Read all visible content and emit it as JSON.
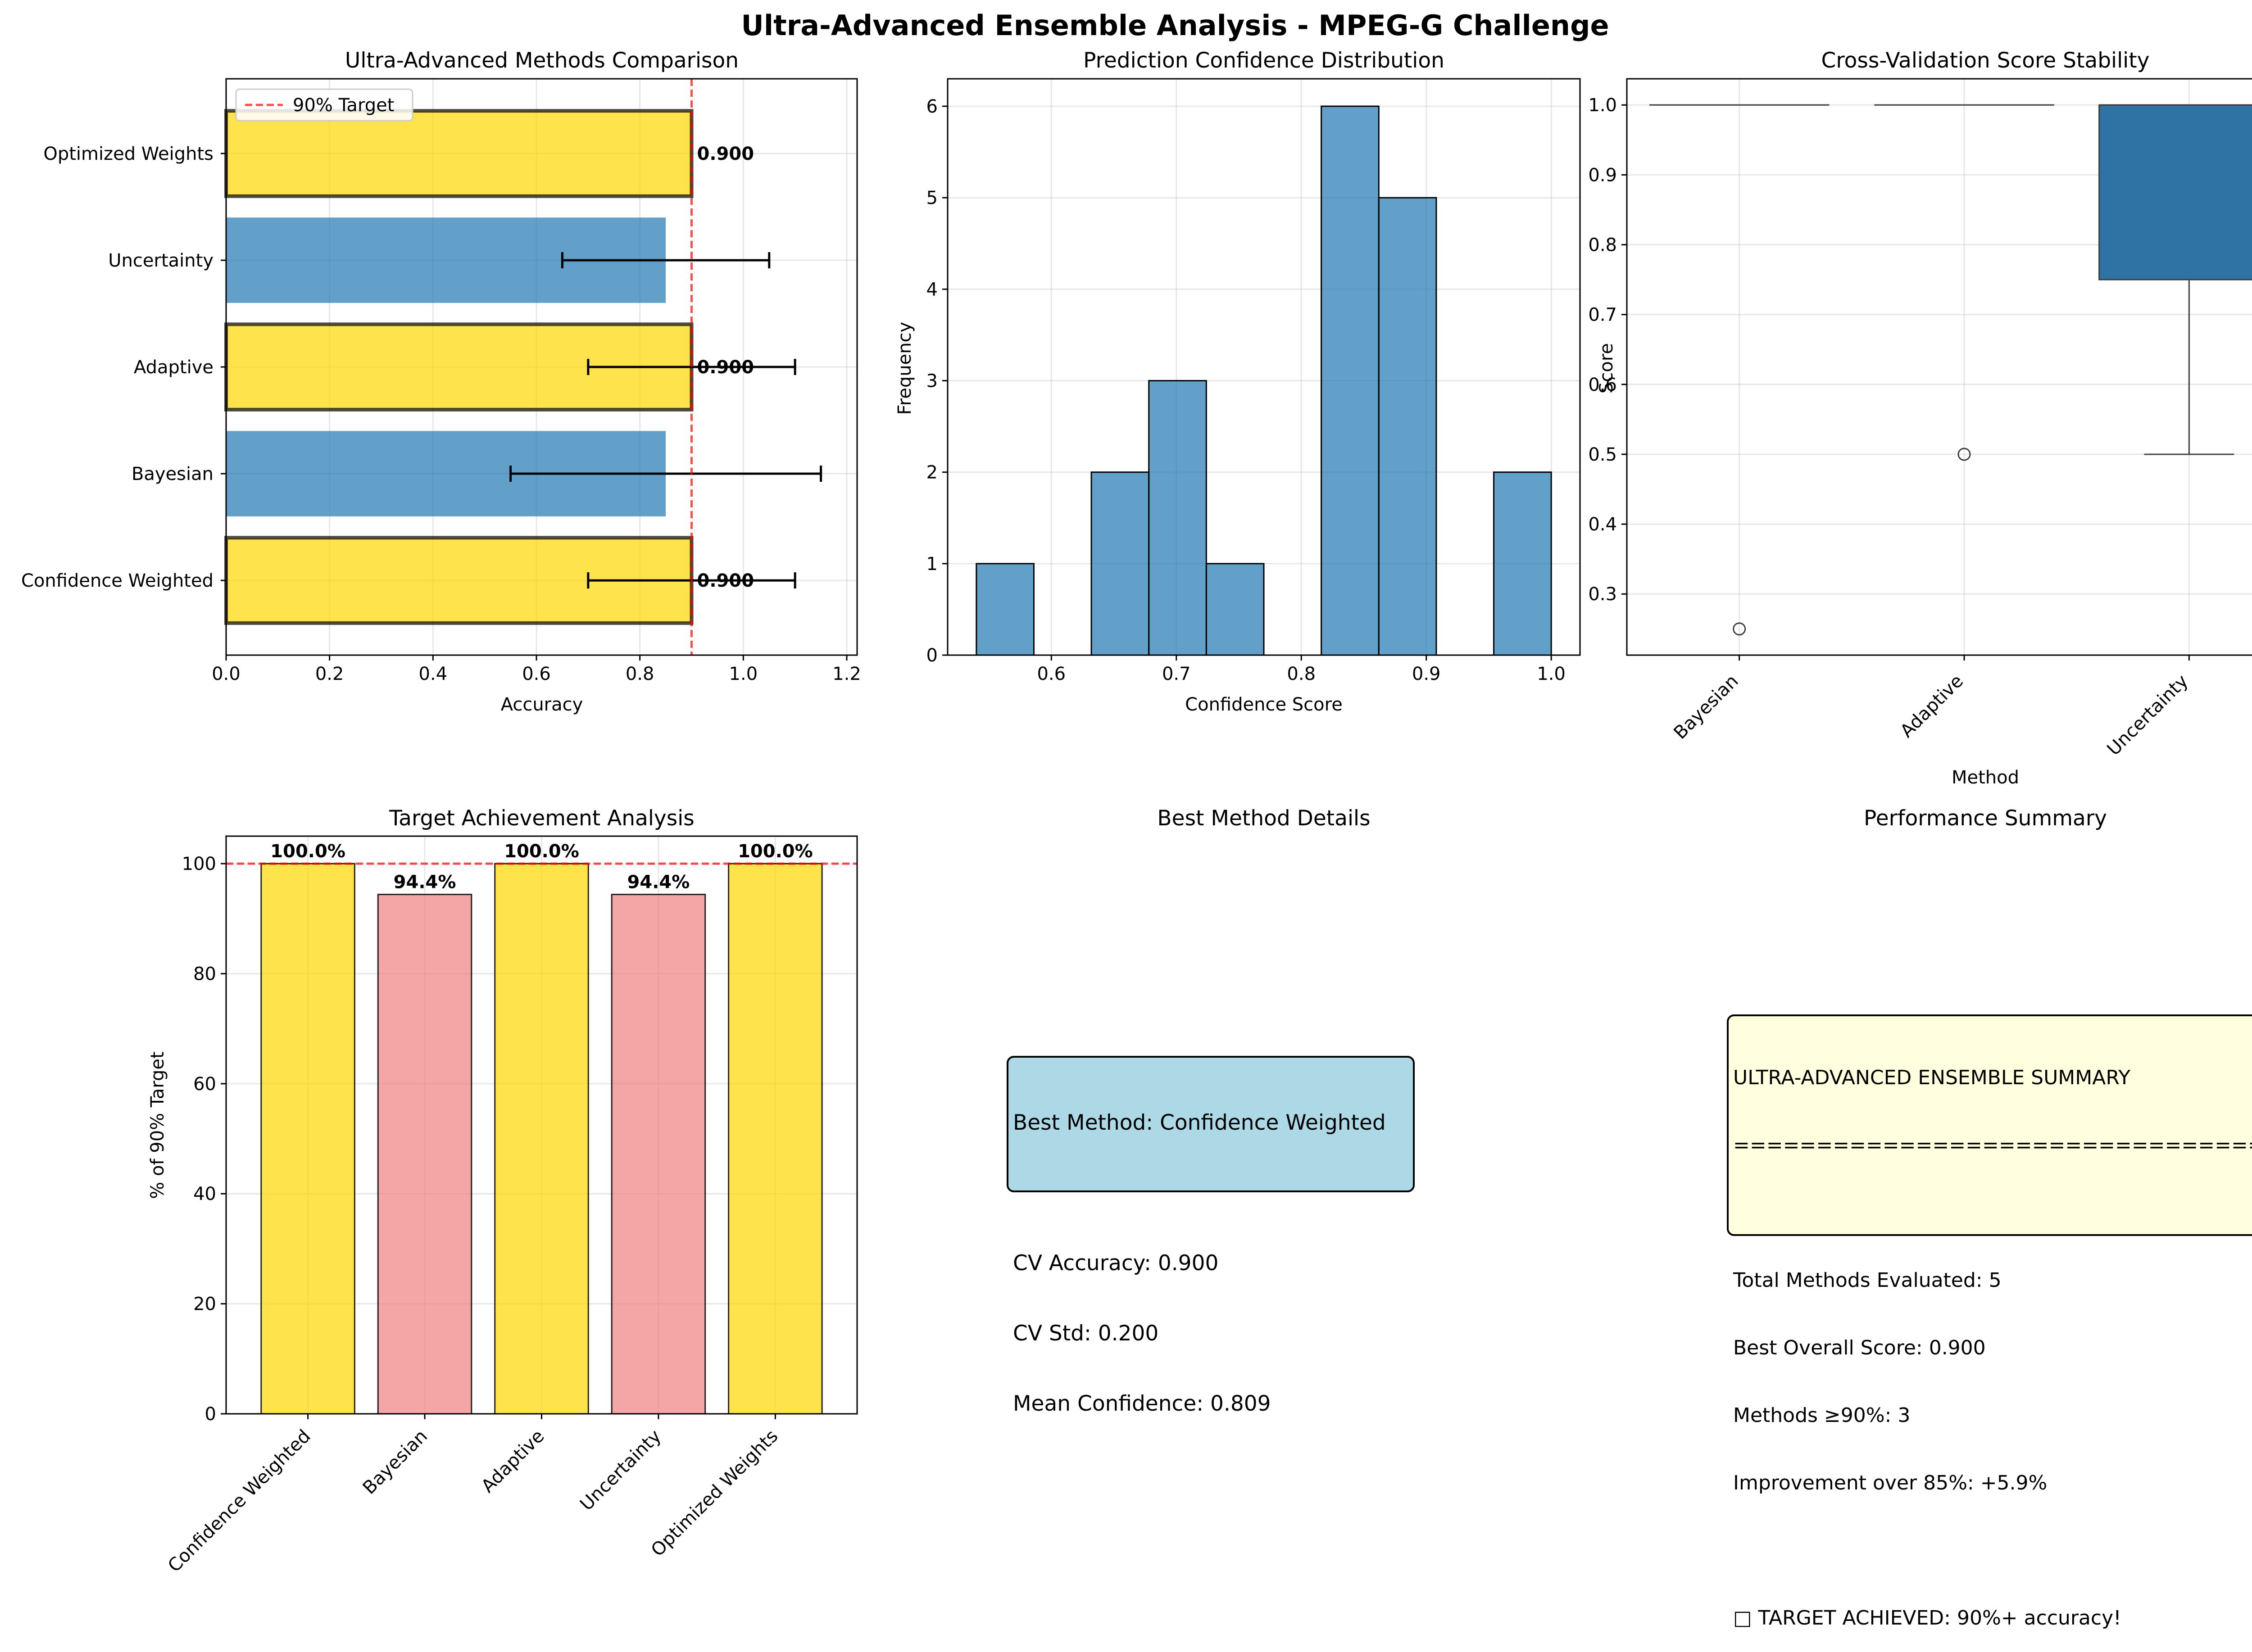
{
  "suptitle": "Ultra-Advanced Ensemble Analysis - MPEG-G Challenge",
  "colors": {
    "gold": "#FFD700",
    "steel": "#1f77b4",
    "pink": "#F08080",
    "target_line": "#FF0000",
    "box_fill": "#2F72A4",
    "best_bg": "#ADD8E6",
    "summary_bg": "#FFFFE0"
  },
  "chart_data": [
    {
      "id": "methods",
      "type": "bar",
      "orientation": "horizontal",
      "title": "Ultra-Advanced Methods Comparison",
      "xlabel": "Accuracy",
      "ylabel": "",
      "categories": [
        "Confidence Weighted",
        "Bayesian",
        "Adaptive",
        "Uncertainty",
        "Optimized Weights"
      ],
      "values": [
        0.9,
        0.85,
        0.9,
        0.85,
        0.9
      ],
      "errors": [
        0.2,
        0.3,
        0.2,
        0.2,
        null
      ],
      "highlight": [
        true,
        false,
        true,
        false,
        true
      ],
      "value_labels": [
        "0.900",
        "",
        "0.900",
        "",
        "0.900"
      ],
      "xlim": [
        0,
        1.22
      ],
      "xticks": [
        "0.0",
        "0.2",
        "0.4",
        "0.6",
        "0.8",
        "1.0",
        "1.2"
      ],
      "target_line": 0.9,
      "legend": "90% Target",
      "legend_position": "upper-left",
      "grid": true
    },
    {
      "id": "confidence",
      "type": "histogram",
      "title": "Prediction Confidence Distribution",
      "xlabel": "Confidence Score",
      "ylabel": "Frequency",
      "bins": [
        {
          "x0": 0.54,
          "x1": 0.586,
          "count": 1
        },
        {
          "x0": 0.586,
          "x1": 0.632,
          "count": 0
        },
        {
          "x0": 0.632,
          "x1": 0.678,
          "count": 2
        },
        {
          "x0": 0.678,
          "x1": 0.724,
          "count": 3
        },
        {
          "x0": 0.724,
          "x1": 0.77,
          "count": 1
        },
        {
          "x0": 0.77,
          "x1": 0.816,
          "count": 0
        },
        {
          "x0": 0.816,
          "x1": 0.862,
          "count": 6
        },
        {
          "x0": 0.862,
          "x1": 0.908,
          "count": 5
        },
        {
          "x0": 0.908,
          "x1": 0.954,
          "count": 0
        },
        {
          "x0": 0.954,
          "x1": 1.0,
          "count": 2
        }
      ],
      "xlim": [
        0.517,
        1.023
      ],
      "ylim": [
        0,
        6.3
      ],
      "xticks": [
        0.6,
        0.7,
        0.8,
        0.9,
        1.0
      ],
      "yticks": [
        0,
        1,
        2,
        3,
        4,
        5,
        6
      ],
      "grid": true
    },
    {
      "id": "cv",
      "type": "box",
      "title": "Cross-Validation Score Stability",
      "xlabel": "Method",
      "ylabel": "Score",
      "categories": [
        "Bayesian",
        "Adaptive",
        "Uncertainty"
      ],
      "boxes": [
        {
          "q1": 1.0,
          "median": 1.0,
          "q3": 1.0,
          "whisker_low": 1.0,
          "whisker_high": 1.0,
          "outliers": [
            0.25
          ]
        },
        {
          "q1": 1.0,
          "median": 1.0,
          "q3": 1.0,
          "whisker_low": 1.0,
          "whisker_high": 1.0,
          "outliers": [
            0.5
          ]
        },
        {
          "q1": 0.75,
          "median": 1.0,
          "q3": 1.0,
          "whisker_low": 0.5,
          "whisker_high": 1.0,
          "outliers": []
        }
      ],
      "ylim": [
        0.2125,
        1.0375
      ],
      "yticks": [
        0.3,
        0.4,
        0.5,
        0.6,
        0.7,
        0.8,
        0.9,
        1.0
      ],
      "grid": true
    },
    {
      "id": "target",
      "type": "bar",
      "title": "Target Achievement Analysis",
      "xlabel": "",
      "ylabel": "% of 90% Target",
      "categories": [
        "Confidence Weighted",
        "Bayesian",
        "Adaptive",
        "Uncertainty",
        "Optimized Weights"
      ],
      "values": [
        100.0,
        94.4,
        100.0,
        94.4,
        100.0
      ],
      "value_labels": [
        "100.0%",
        "94.4%",
        "100.0%",
        "94.4%",
        "100.0%"
      ],
      "highlight": [
        true,
        false,
        true,
        false,
        true
      ],
      "ylim": [
        0,
        105
      ],
      "yticks": [
        0,
        20,
        40,
        60,
        80,
        100
      ],
      "target_line": 100,
      "grid": true
    }
  ],
  "best_method": {
    "title": "Best Method Details",
    "lines": [
      "Best Method: Confidence Weighted",
      "",
      "CV Accuracy: 0.900",
      "CV Std: 0.200",
      "Mean Confidence: 0.809"
    ]
  },
  "summary": {
    "title": "Performance Summary",
    "lines": [
      "ULTRA-ADVANCED ENSEMBLE SUMMARY",
      "==================================",
      "",
      "Total Methods Evaluated: 5",
      "Best Overall Score: 0.900",
      "Methods ≥90%: 3",
      "Improvement over 85%: +5.9%",
      "",
      "□ TARGET ACHIEVED: 90%+ accuracy!"
    ]
  }
}
